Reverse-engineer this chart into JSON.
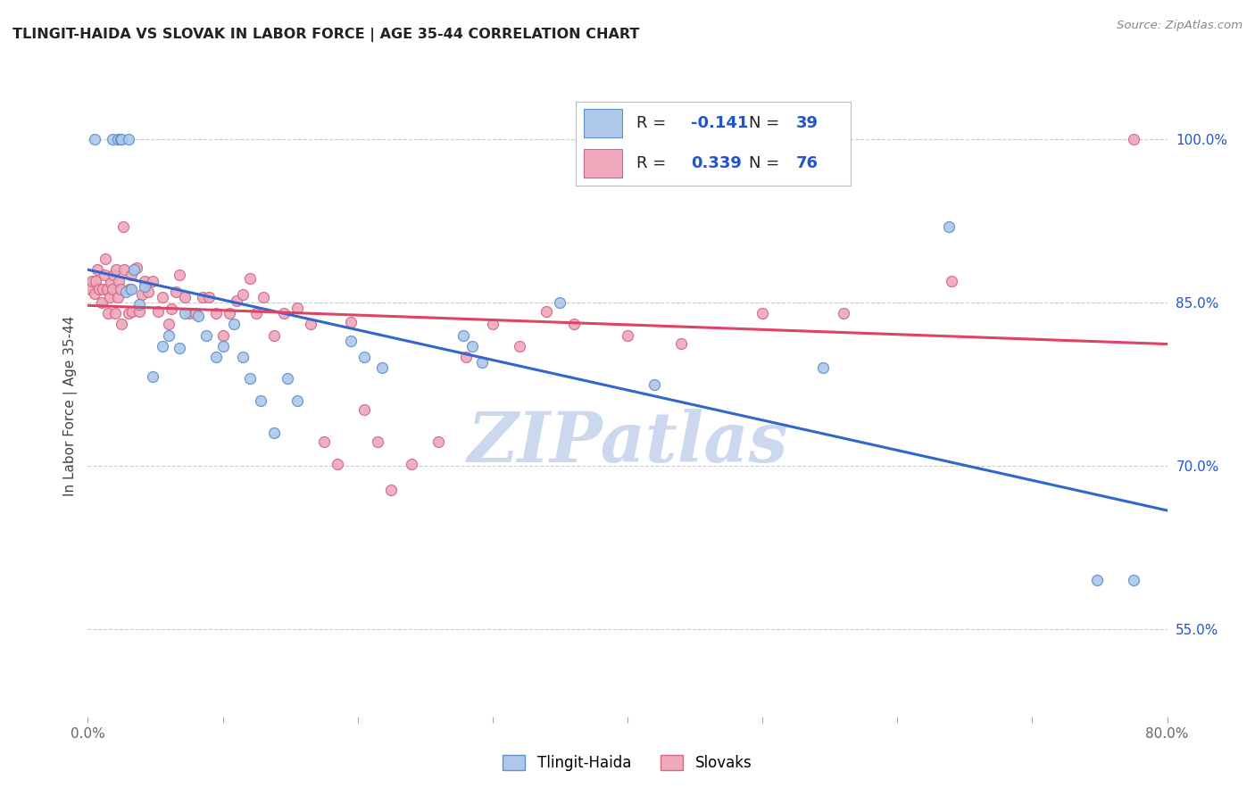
{
  "title": "TLINGIT-HAIDA VS SLOVAK IN LABOR FORCE | AGE 35-44 CORRELATION CHART",
  "source_text": "Source: ZipAtlas.com",
  "ylabel": "In Labor Force | Age 35-44",
  "xlim": [
    0.0,
    0.8
  ],
  "ylim": [
    0.47,
    1.04
  ],
  "xticks": [
    0.0,
    0.1,
    0.2,
    0.3,
    0.4,
    0.5,
    0.6,
    0.7,
    0.8
  ],
  "xticklabels": [
    "0.0%",
    "",
    "",
    "",
    "",
    "",
    "",
    "",
    "80.0%"
  ],
  "yticks_right": [
    0.55,
    0.7,
    0.85,
    1.0
  ],
  "ytick_labels_right": [
    "55.0%",
    "70.0%",
    "85.0%",
    "100.0%"
  ],
  "grid_color": "#cccccc",
  "bg_color": "#ffffff",
  "tlingit_fill": "#adc8e8",
  "tlingit_edge": "#6090c8",
  "slovak_fill": "#f0a8bc",
  "slovak_edge": "#d06888",
  "tlingit_line_color": "#3366cc",
  "slovak_line_color": "#dd4466",
  "legend_num_color": "#2255cc",
  "watermark_color": "#ccd8ee",
  "marker_size": 75,
  "tlingit_x": [
    0.005,
    0.018,
    0.022,
    0.024,
    0.025,
    0.028,
    0.03,
    0.032,
    0.034,
    0.038,
    0.042,
    0.048,
    0.055,
    0.06,
    0.068,
    0.072,
    0.082,
    0.088,
    0.095,
    0.1,
    0.108,
    0.115,
    0.12,
    0.128,
    0.138,
    0.148,
    0.155,
    0.195,
    0.205,
    0.218,
    0.278,
    0.285,
    0.292,
    0.35,
    0.42,
    0.545,
    0.638,
    0.748,
    0.775
  ],
  "tlingit_y": [
    1.0,
    1.0,
    1.0,
    1.0,
    1.0,
    0.86,
    1.0,
    0.862,
    0.88,
    0.848,
    0.865,
    0.782,
    0.81,
    0.82,
    0.808,
    0.84,
    0.838,
    0.82,
    0.8,
    0.81,
    0.83,
    0.8,
    0.78,
    0.76,
    0.73,
    0.78,
    0.76,
    0.815,
    0.8,
    0.79,
    0.82,
    0.81,
    0.795,
    0.85,
    0.775,
    0.79,
    0.92,
    0.595,
    0.595
  ],
  "slovak_x": [
    0.002,
    0.003,
    0.005,
    0.006,
    0.007,
    0.008,
    0.01,
    0.011,
    0.012,
    0.013,
    0.014,
    0.015,
    0.016,
    0.017,
    0.018,
    0.019,
    0.02,
    0.021,
    0.022,
    0.023,
    0.024,
    0.025,
    0.026,
    0.027,
    0.03,
    0.031,
    0.032,
    0.033,
    0.036,
    0.038,
    0.04,
    0.042,
    0.045,
    0.048,
    0.052,
    0.055,
    0.06,
    0.062,
    0.065,
    0.068,
    0.072,
    0.075,
    0.08,
    0.085,
    0.09,
    0.095,
    0.1,
    0.105,
    0.11,
    0.115,
    0.12,
    0.125,
    0.13,
    0.138,
    0.145,
    0.155,
    0.165,
    0.175,
    0.185,
    0.195,
    0.205,
    0.215,
    0.225,
    0.24,
    0.26,
    0.28,
    0.3,
    0.32,
    0.34,
    0.36,
    0.4,
    0.44,
    0.5,
    0.56,
    0.64,
    0.775
  ],
  "slovak_y": [
    0.862,
    0.87,
    0.858,
    0.87,
    0.88,
    0.862,
    0.85,
    0.862,
    0.875,
    0.89,
    0.862,
    0.84,
    0.855,
    0.868,
    0.862,
    0.875,
    0.84,
    0.88,
    0.855,
    0.87,
    0.862,
    0.83,
    0.92,
    0.88,
    0.84,
    0.862,
    0.875,
    0.842,
    0.882,
    0.842,
    0.857,
    0.87,
    0.86,
    0.87,
    0.842,
    0.855,
    0.83,
    0.844,
    0.86,
    0.875,
    0.855,
    0.84,
    0.84,
    0.855,
    0.855,
    0.84,
    0.82,
    0.84,
    0.852,
    0.857,
    0.872,
    0.84,
    0.855,
    0.82,
    0.84,
    0.845,
    0.83,
    0.722,
    0.702,
    0.832,
    0.752,
    0.722,
    0.678,
    0.702,
    0.722,
    0.8,
    0.83,
    0.81,
    0.842,
    0.83,
    0.82,
    0.812,
    0.84,
    0.84,
    0.87,
    1.0
  ]
}
